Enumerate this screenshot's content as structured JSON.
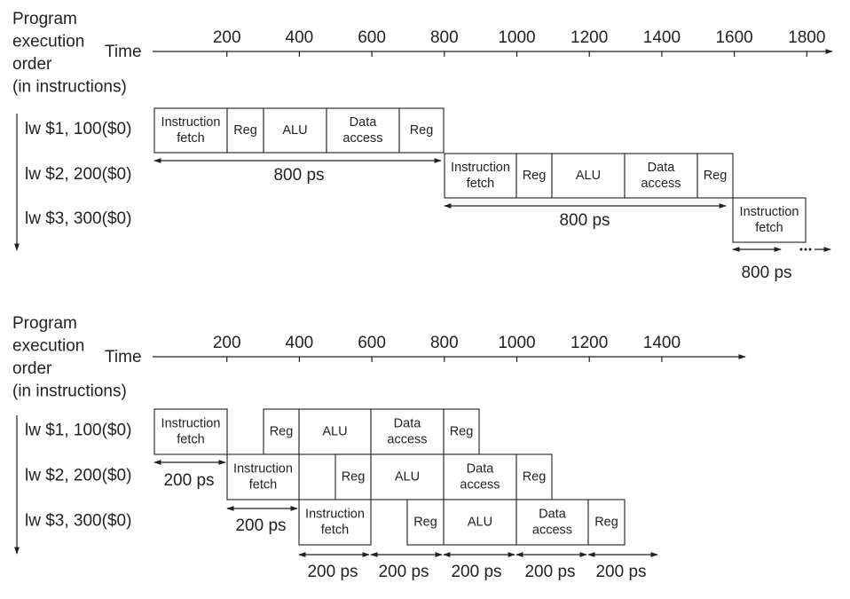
{
  "pipelines": [
    {
      "order_label": [
        "Program",
        "execution",
        "order",
        "(in instructions)"
      ],
      "time_label": "Time",
      "ticks": [
        200,
        400,
        600,
        800,
        1000,
        1200,
        1400,
        1600,
        1800
      ],
      "instructions": [
        "lw $1, 100($0)",
        "lw $2, 200($0)",
        "lw $3, 300($0)"
      ],
      "rows": [
        [
          [
            "Instruction",
            "fetch"
          ],
          [
            "Reg"
          ],
          [
            "ALU"
          ],
          [
            "Data",
            "access"
          ],
          [
            "Reg"
          ]
        ],
        [
          [
            "Instruction",
            "fetch"
          ],
          [
            "Reg"
          ],
          [
            "ALU"
          ],
          [
            "Data",
            "access"
          ],
          [
            "Reg"
          ]
        ],
        [
          [
            "Instruction",
            "fetch"
          ]
        ]
      ],
      "intervals": [
        "800 ps",
        "800 ps",
        "800 ps"
      ]
    },
    {
      "order_label": [
        "Program",
        "execution",
        "order",
        "(in instructions)"
      ],
      "time_label": "Time",
      "ticks": [
        200,
        400,
        600,
        800,
        1000,
        1200,
        1400
      ],
      "instructions": [
        "lw $1, 100($0)",
        "lw $2, 200($0)",
        "lw $3, 300($0)"
      ],
      "rows": [
        [
          [
            "Instruction",
            "fetch"
          ],
          [
            "Reg"
          ],
          [
            "ALU"
          ],
          [
            "Data",
            "access"
          ],
          [
            "Reg"
          ]
        ],
        [
          [
            "Instruction",
            "fetch"
          ],
          [
            "Reg"
          ],
          [
            "ALU"
          ],
          [
            "Data",
            "access"
          ],
          [
            "Reg"
          ]
        ],
        [
          [
            "Instruction",
            "fetch"
          ],
          [
            "Reg"
          ],
          [
            "ALU"
          ],
          [
            "Data",
            "access"
          ],
          [
            "Reg"
          ]
        ]
      ],
      "intervals": [
        "200 ps",
        "200 ps",
        "200 ps",
        "200 ps",
        "200 ps",
        "200 ps",
        "200 ps"
      ]
    }
  ]
}
